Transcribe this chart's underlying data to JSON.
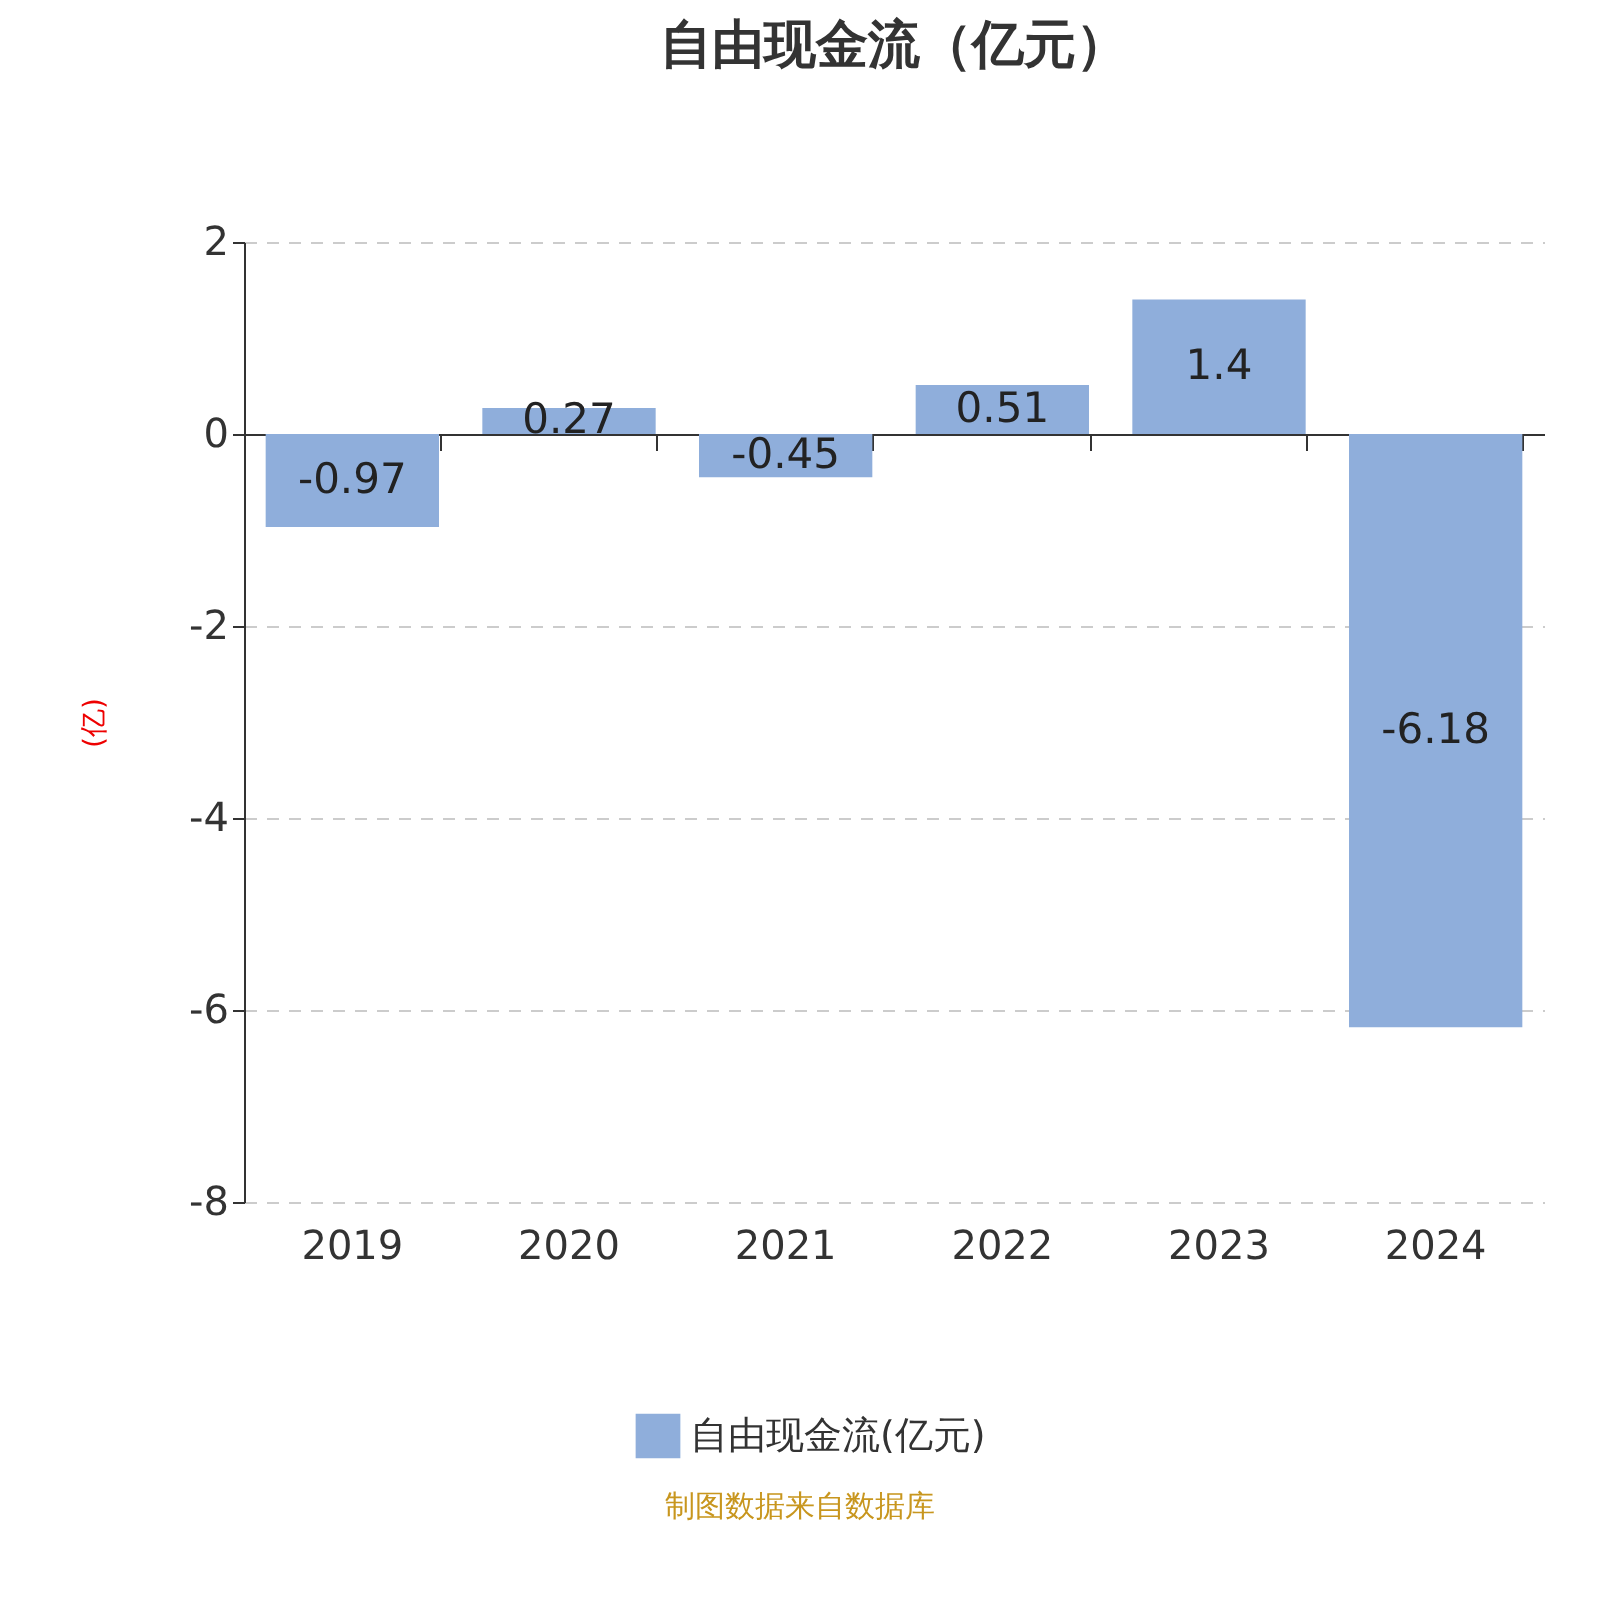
{
  "chart_data": {
    "type": "bar",
    "title": "自由现金流（亿元）",
    "ylabel": "(亿)",
    "categories": [
      "2019",
      "2020",
      "2021",
      "2022",
      "2023",
      "2024"
    ],
    "series": [
      {
        "name": "自由现金流(亿元)",
        "color": "#8faedb",
        "values": [
          -0.97,
          0.27,
          -0.45,
          0.51,
          1.4,
          -6.18
        ]
      }
    ],
    "ylim": [
      -8,
      2
    ],
    "yticks": [
      -8,
      -6,
      -4,
      -2,
      0,
      2
    ],
    "grid": "y",
    "legend": "bottom",
    "data_labels": true,
    "annotations": [
      "制图数据来自数据库"
    ]
  }
}
